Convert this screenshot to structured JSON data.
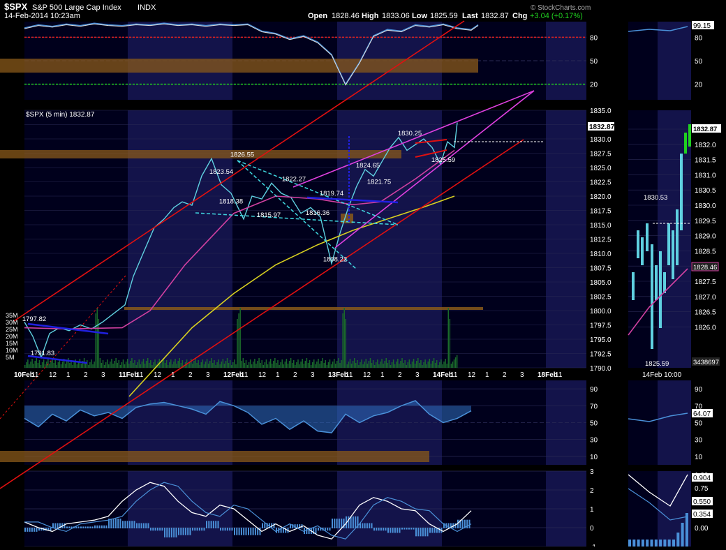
{
  "header": {
    "symbol": "$SPX",
    "name": "S&P 500 Large Cap Index",
    "exchange": "INDX",
    "datetime": "14-Feb-2014 10:23am",
    "open_label": "Open",
    "open": "1828.46",
    "high_label": "High",
    "high": "1833.06",
    "low_label": "Low",
    "low": "1825.59",
    "last_label": "Last",
    "last": "1832.87",
    "chg_label": "Chg",
    "chg": "+3.04 (+0.17%)",
    "watermark": "© StockCharts.com"
  },
  "colors": {
    "background": "#000000",
    "panel_bg": "#0b0b2e",
    "grid": "#2a2a55",
    "price": "#5fd0e0",
    "sma_short": "#d040a0",
    "sma_long": "#d8d020",
    "trend_red": "#e01010",
    "trend_magenta": "#e040e0",
    "dashed_cyan": "#40d8e0",
    "support": "#8a5a1a",
    "rsi": "#4a90d8",
    "green": "#20d020"
  },
  "legend": {
    "text": "$SPX (5 min) 1832.87"
  },
  "chart_data": [
    {
      "type": "line",
      "name": "top-indicator",
      "ylim": [
        0,
        100
      ],
      "ticks": [
        20,
        50,
        80
      ],
      "x": [
        0,
        20,
        40,
        60,
        80,
        100,
        120,
        140,
        160,
        180,
        200,
        220,
        240,
        260,
        280,
        300,
        320,
        340,
        360,
        380,
        400,
        420,
        440,
        460,
        480,
        500,
        520,
        540,
        560,
        580,
        600,
        620,
        640,
        650
      ],
      "values": [
        92,
        96,
        94,
        97,
        95,
        98,
        96,
        95,
        97,
        96,
        98,
        96,
        97,
        95,
        97,
        96,
        97,
        88,
        85,
        78,
        82,
        74,
        58,
        20,
        48,
        82,
        90,
        88,
        96,
        94,
        97,
        92,
        90,
        96
      ],
      "side_value": "99.15"
    },
    {
      "type": "line",
      "name": "price",
      "ylim": [
        1790,
        1835
      ],
      "ticks": [
        "1790.0",
        "1792.5",
        "1795.0",
        "1797.5",
        "1800.0",
        "1802.5",
        "1805.0",
        "1807.5",
        "1810.0",
        "1812.5",
        "1815.0",
        "1817.5",
        "1820.0",
        "1822.5",
        "1825.0",
        "1827.5",
        "1830.0",
        "1832.5",
        "1835.0"
      ],
      "x_labels": [
        "10Feb",
        "11",
        "12",
        "1",
        "2",
        "3",
        "11Feb",
        "11",
        "12",
        "1",
        "2",
        "3",
        "12Feb",
        "11",
        "12",
        "1",
        "2",
        "3",
        "13Feb",
        "11",
        "12",
        "1",
        "2",
        "3",
        "14Feb",
        "11",
        "12",
        "1",
        "2",
        "3",
        "18Feb",
        "11"
      ],
      "x": [
        0,
        12,
        24,
        36,
        50,
        64,
        80,
        96,
        112,
        128,
        144,
        156,
        170,
        186,
        200,
        214,
        226,
        240,
        254,
        268,
        282,
        296,
        306,
        314,
        326,
        340,
        354,
        368,
        382,
        396,
        410,
        424,
        440,
        452,
        464,
        476,
        488,
        500,
        512,
        524,
        536,
        548,
        560,
        572,
        584,
        596,
        606,
        616,
        620
      ],
      "values": [
        1798.0,
        1795.5,
        1791.8,
        1796.0,
        1797.0,
        1796.5,
        1797.5,
        1796.8,
        1798.0,
        1799.5,
        1801.0,
        1806.0,
        1810.0,
        1814.5,
        1816.0,
        1818.0,
        1819.0,
        1818.4,
        1823.54,
        1826.55,
        1822.0,
        1820.5,
        1818.0,
        1816.0,
        1820.0,
        1819.5,
        1822.27,
        1820.5,
        1819.74,
        1817.0,
        1818.0,
        1816.36,
        1808.22,
        1813.5,
        1818.0,
        1821.75,
        1824.65,
        1823.5,
        1826.0,
        1828.5,
        1830.25,
        1828.0,
        1829.0,
        1830.0,
        1828.5,
        1825.59,
        1829.5,
        1828.5,
        1832.87
      ],
      "sma_short_x": [
        0,
        60,
        140,
        180,
        230,
        300,
        360,
        420,
        470,
        510,
        560,
        616
      ],
      "sma_short": [
        1797.0,
        1796.8,
        1797.0,
        1800.0,
        1808.0,
        1817.0,
        1820.0,
        1819.5,
        1818.5,
        1819.0,
        1823.0,
        1828.0
      ],
      "sma_long_x": [
        150,
        240,
        300,
        360,
        420,
        470,
        520,
        570,
        616
      ],
      "sma_long": [
        1785.0,
        1797.0,
        1803.0,
        1808.0,
        1811.5,
        1814.0,
        1816.0,
        1818.0,
        1820.0
      ],
      "annotations": [
        {
          "x": 312,
          "y": 1826.55,
          "text": "1826.55"
        },
        {
          "x": 282,
          "y": 1823.54,
          "text": "1823.54"
        },
        {
          "x": 296,
          "y": 1818.38,
          "text": "1818.38"
        },
        {
          "x": 350,
          "y": 1815.97,
          "text": "1815.97"
        },
        {
          "x": 386,
          "y": 1822.27,
          "text": "1822.27"
        },
        {
          "x": 440,
          "y": 1819.74,
          "text": "1819.74"
        },
        {
          "x": 420,
          "y": 1816.36,
          "text": "1816.36"
        },
        {
          "x": 445,
          "y": 1808.22,
          "text": "1808.22"
        },
        {
          "x": 492,
          "y": 1824.65,
          "text": "1824.65"
        },
        {
          "x": 508,
          "y": 1821.75,
          "text": "1821.75"
        },
        {
          "x": 552,
          "y": 1830.25,
          "text": "1830.25"
        },
        {
          "x": 600,
          "y": 1825.59,
          "text": "1825.59"
        },
        {
          "x": 14,
          "y": 1797.82,
          "text": "1797.82"
        },
        {
          "x": 26,
          "y": 1791.83,
          "text": "1791.83"
        }
      ],
      "last_label": "1832.87",
      "volume_ticks": [
        "5M",
        "10M",
        "15M",
        "20M",
        "25M",
        "30M",
        "35M"
      ],
      "side_labels": [
        "1832.87",
        "1830.53",
        "1828.46",
        "1825.59",
        "3438697"
      ],
      "side_ticks": [
        "1832.5",
        "1832.0",
        "1831.5",
        "1831.0",
        "1830.5",
        "1830.0",
        "1829.5",
        "1829.0",
        "1828.5",
        "1828.0",
        "1827.5",
        "1827.0",
        "1826.5",
        "1826.0"
      ],
      "side_xlabel": "14Feb 10:00"
    },
    {
      "type": "line",
      "name": "rsi",
      "ylim": [
        0,
        100
      ],
      "ticks": [
        10,
        30,
        50,
        70,
        90
      ],
      "x": [
        0,
        20,
        40,
        60,
        80,
        100,
        120,
        140,
        160,
        180,
        200,
        220,
        240,
        260,
        280,
        300,
        320,
        340,
        360,
        380,
        400,
        420,
        440,
        460,
        480,
        500,
        520,
        540,
        560,
        580,
        600,
        620,
        640
      ],
      "values": [
        55,
        45,
        60,
        52,
        65,
        58,
        62,
        55,
        68,
        72,
        74,
        70,
        66,
        60,
        75,
        70,
        62,
        48,
        55,
        42,
        52,
        40,
        38,
        60,
        50,
        58,
        62,
        70,
        76,
        60,
        50,
        55,
        64
      ],
      "side_value": "64.07"
    },
    {
      "type": "line",
      "name": "macd",
      "ylim": [
        -1,
        3
      ],
      "ticks": [
        -1,
        0,
        1,
        2,
        3
      ],
      "x": [
        0,
        20,
        40,
        60,
        80,
        100,
        120,
        140,
        160,
        180,
        200,
        220,
        240,
        260,
        280,
        300,
        320,
        340,
        360,
        380,
        400,
        420,
        440,
        460,
        480,
        500,
        520,
        540,
        560,
        580,
        600,
        620,
        640
      ],
      "values": [
        0.3,
        0.0,
        -0.2,
        0.2,
        0.3,
        0.4,
        0.6,
        1.4,
        2.0,
        2.4,
        2.2,
        1.4,
        0.8,
        0.6,
        1.2,
        1.0,
        0.4,
        -0.2,
        0.2,
        -0.2,
        0.1,
        -0.4,
        -0.6,
        0.2,
        1.2,
        1.6,
        1.4,
        1.0,
        0.9,
        0.2,
        -0.2,
        0.2,
        0.9
      ],
      "side_ticks": [
        "1.00",
        "0.75",
        "0.50",
        "0.25",
        "0.00"
      ],
      "side_labels": [
        "0.904",
        "0.550",
        "0.354"
      ]
    }
  ]
}
